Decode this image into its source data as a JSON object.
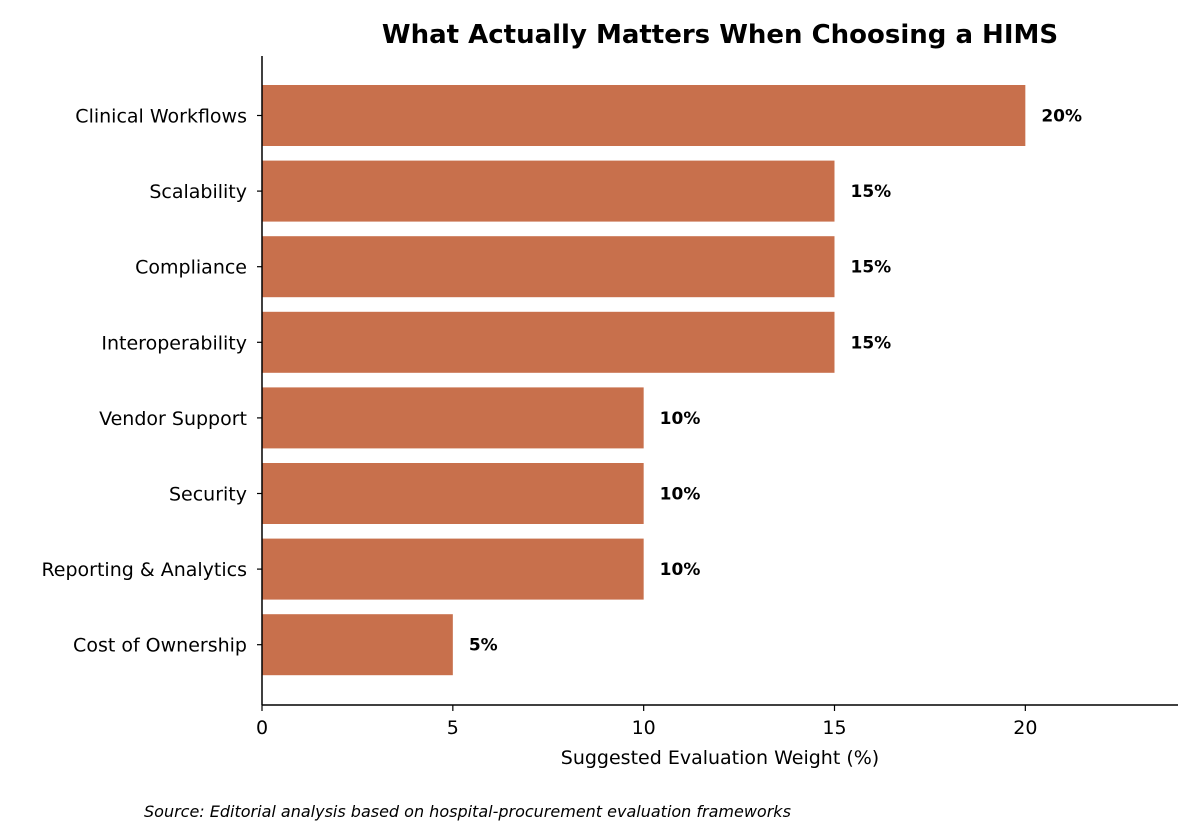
{
  "chart_data": {
    "type": "bar",
    "orientation": "horizontal",
    "title": "What Actually Matters When Choosing a HIMS",
    "xlabel": "Suggested Evaluation Weight (%)",
    "ylabel": "",
    "xlim": [
      0,
      24
    ],
    "xticks": [
      0,
      5,
      10,
      15,
      20
    ],
    "categories": [
      "Clinical Workflows",
      "Scalability",
      "Compliance",
      "Interoperability",
      "Vendor Support",
      "Security",
      "Reporting & Analytics",
      "Cost of Ownership"
    ],
    "values": [
      20,
      15,
      15,
      15,
      10,
      10,
      10,
      5
    ],
    "data_labels": [
      "20%",
      "15%",
      "15%",
      "15%",
      "10%",
      "10%",
      "10%",
      "5%"
    ],
    "bar_color": "#c8704c",
    "grid": false,
    "legend": "none",
    "source": "Source: Editorial analysis based on hospital-procurement evaluation frameworks"
  }
}
